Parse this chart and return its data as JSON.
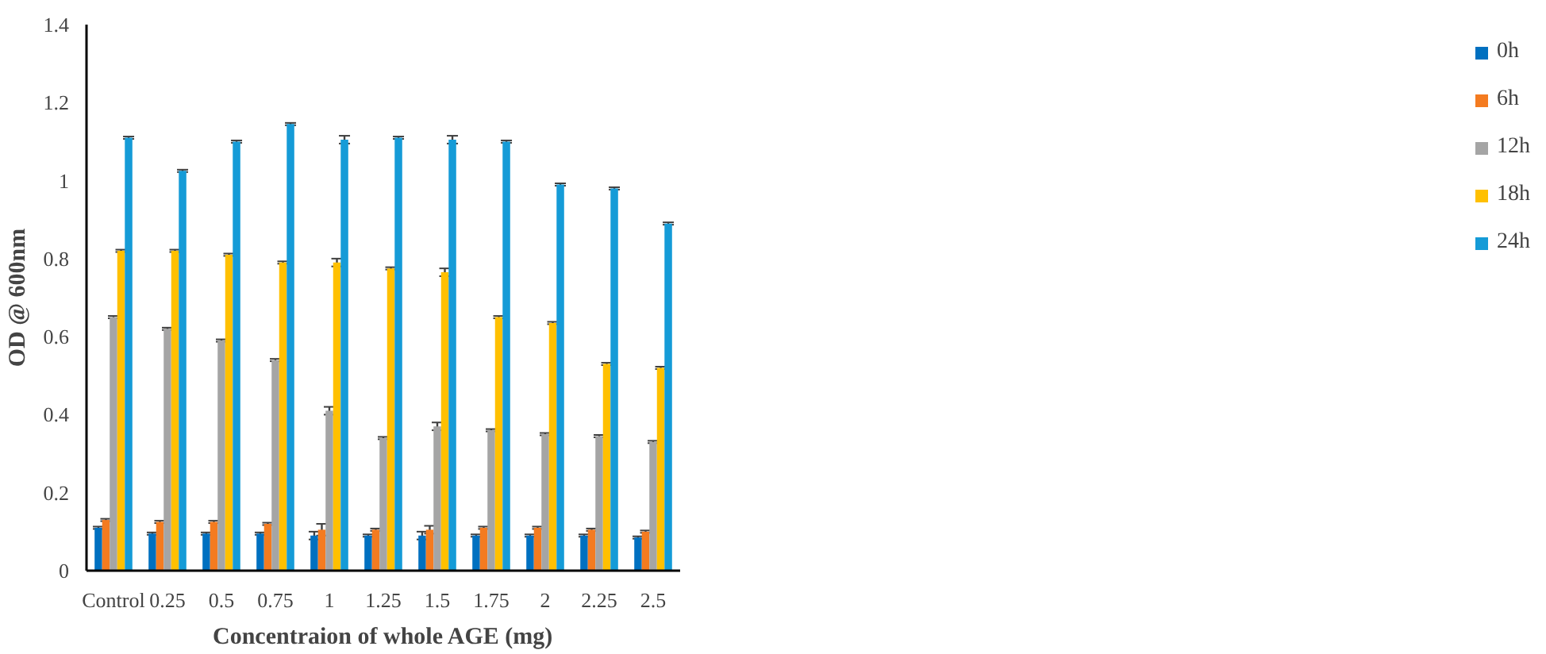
{
  "chart_data": {
    "type": "bar",
    "xlabel": "Concentraion of whole AGE (mg)",
    "ylabel": "OD @ 600nm",
    "categories": [
      "Control",
      "0.25",
      "0.5",
      "0.75",
      "1",
      "1.25",
      "1.5",
      "1.75",
      "2",
      "2.25",
      "2.5"
    ],
    "ylim": [
      0,
      1.4
    ],
    "yticks": [
      0,
      0.2,
      0.4,
      0.6,
      0.8,
      1,
      1.2,
      1.4
    ],
    "grid": false,
    "legend": "right",
    "series": [
      {
        "name": "0h",
        "color": "#0070c0",
        "values": [
          0.11,
          0.095,
          0.095,
          0.095,
          0.09,
          0.09,
          0.09,
          0.09,
          0.09,
          0.09,
          0.085
        ],
        "errors": [
          0.003,
          0.003,
          0.003,
          0.003,
          0.01,
          0.003,
          0.01,
          0.003,
          0.003,
          0.003,
          0.003
        ]
      },
      {
        "name": "6h",
        "color": "#f47b20",
        "values": [
          0.13,
          0.125,
          0.125,
          0.12,
          0.105,
          0.105,
          0.105,
          0.11,
          0.11,
          0.105,
          0.1
        ],
        "errors": [
          0.003,
          0.003,
          0.003,
          0.003,
          0.015,
          0.003,
          0.01,
          0.003,
          0.003,
          0.003,
          0.003
        ]
      },
      {
        "name": "12h",
        "color": "#a5a5a5",
        "values": [
          0.65,
          0.62,
          0.59,
          0.54,
          0.41,
          0.34,
          0.37,
          0.36,
          0.35,
          0.345,
          0.33
        ],
        "errors": [
          0.003,
          0.003,
          0.003,
          0.003,
          0.01,
          0.003,
          0.01,
          0.003,
          0.003,
          0.003,
          0.003
        ]
      },
      {
        "name": "18h",
        "color": "#ffc000",
        "values": [
          0.82,
          0.82,
          0.81,
          0.79,
          0.79,
          0.775,
          0.765,
          0.65,
          0.635,
          0.53,
          0.52
        ],
        "errors": [
          0.003,
          0.003,
          0.003,
          0.003,
          0.01,
          0.003,
          0.01,
          0.003,
          0.003,
          0.003,
          0.003
        ]
      },
      {
        "name": "24h",
        "color": "#159bd7",
        "values": [
          1.11,
          1.025,
          1.1,
          1.145,
          1.105,
          1.11,
          1.105,
          1.1,
          0.99,
          0.98,
          0.89
        ],
        "errors": [
          0.003,
          0.003,
          0.003,
          0.003,
          0.01,
          0.003,
          0.01,
          0.003,
          0.003,
          0.003,
          0.003
        ]
      }
    ]
  }
}
